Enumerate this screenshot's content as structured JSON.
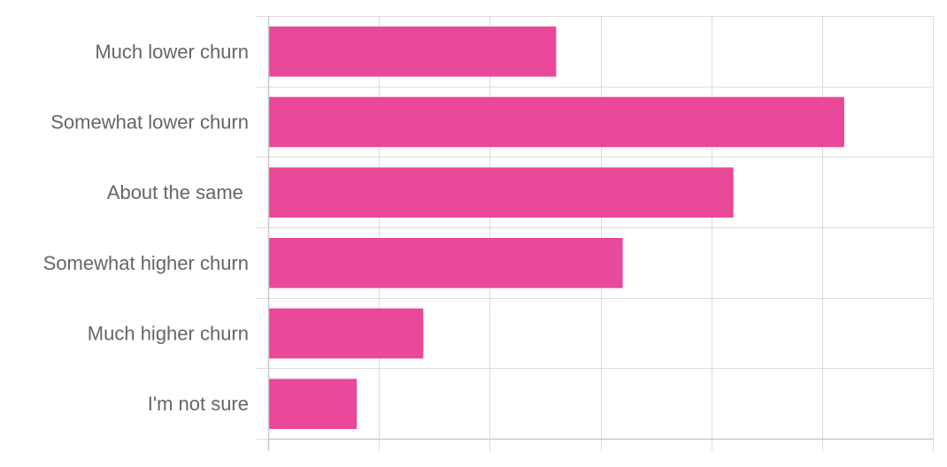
{
  "chart_data": {
    "type": "bar",
    "orientation": "horizontal",
    "categories": [
      "Much lower churn",
      "Somewhat lower churn",
      "About the same ",
      "Somewhat higher churn",
      "Much higher churn",
      "I'm not sure"
    ],
    "values": [
      13,
      26,
      21,
      16,
      7,
      4
    ],
    "xlim": [
      0,
      30
    ],
    "x_grid_step": 5,
    "title": "",
    "xlabel": "",
    "ylabel": "",
    "grid": true,
    "legend": "none",
    "colors": {
      "bar": "#ea4899",
      "grid": "#dcdcdc",
      "label": "#666666"
    }
  }
}
